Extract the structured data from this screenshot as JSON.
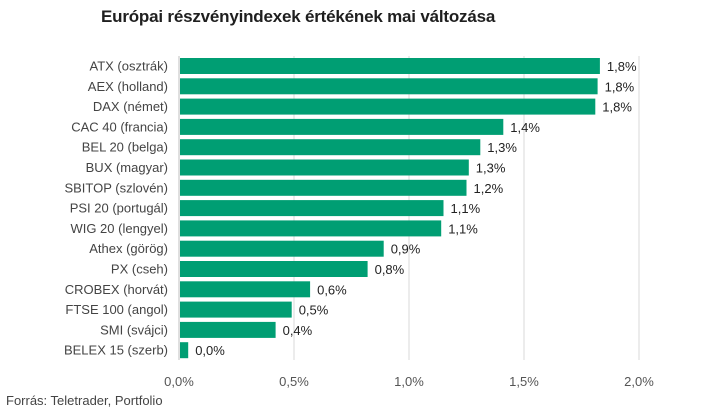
{
  "chart_data": {
    "type": "bar",
    "orientation": "horizontal",
    "title": "Európai részvényindexek értékének mai változása",
    "source": "Forrás: Teletrader, Portfolio",
    "categories": [
      "ATX (osztrák)",
      "AEX (holland)",
      "DAX (német)",
      "CAC 40 (francia)",
      "BEL 20 (belga)",
      "BUX (magyar)",
      "SBITOP (szlovén)",
      "PSI 20 (portugál)",
      "WIG 20 (lengyel)",
      "Athex (görög)",
      "PX (cseh)",
      "CROBEX (horvát)",
      "FTSE 100 (angol)",
      "SMI (svájci)",
      "BELEX 15 (szerb)"
    ],
    "values": [
      1.83,
      1.82,
      1.81,
      1.41,
      1.31,
      1.26,
      1.25,
      1.15,
      1.14,
      0.89,
      0.82,
      0.57,
      0.49,
      0.42,
      0.04
    ],
    "value_labels": [
      "1,8%",
      "1,8%",
      "1,8%",
      "1,4%",
      "1,3%",
      "1,3%",
      "1,2%",
      "1,1%",
      "1,1%",
      "0,9%",
      "0,8%",
      "0,6%",
      "0,5%",
      "0,4%",
      "0,0%"
    ],
    "xlim": [
      0,
      2.0
    ],
    "x_ticks": [
      0,
      0.5,
      1.0,
      1.5,
      2.0
    ],
    "x_tick_labels": [
      "0,0%",
      "0,5%",
      "1,0%",
      "1,5%",
      "2,0%"
    ],
    "grid": true,
    "bar_color": "#009e73",
    "grid_color": "#d9d9d9"
  }
}
